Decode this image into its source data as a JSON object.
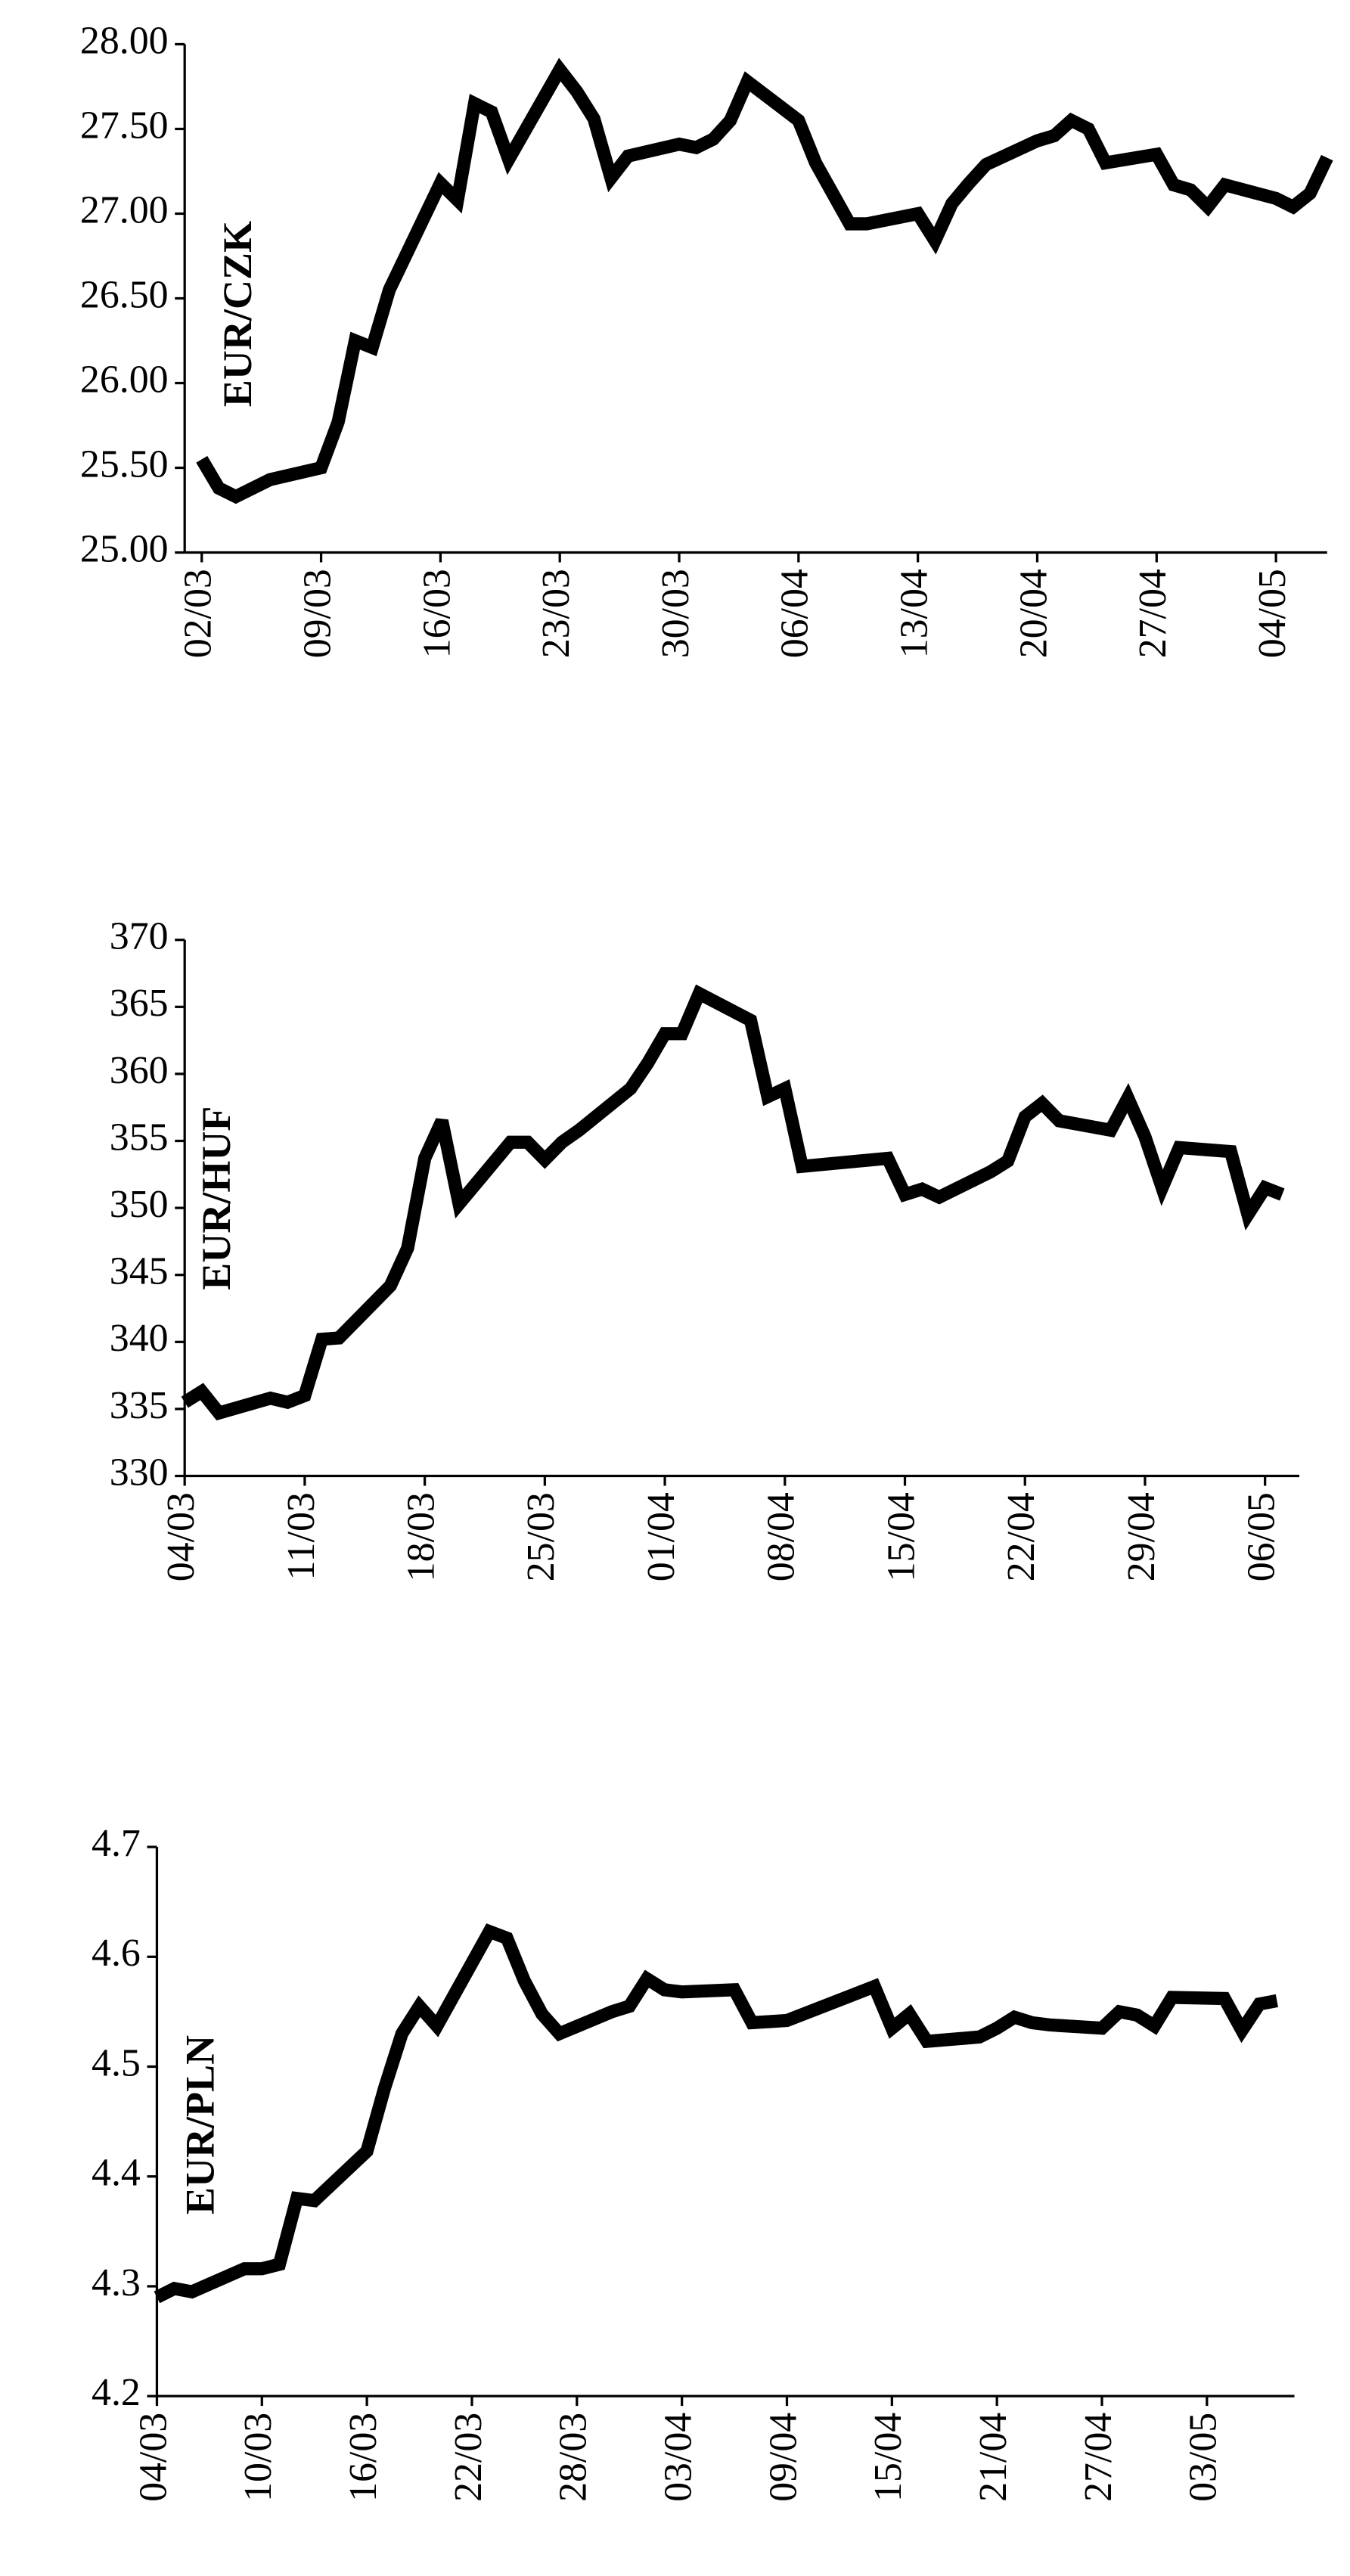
{
  "chart_data": [
    {
      "type": "line",
      "label": "EUR/CZK",
      "color": "#000000",
      "x": [
        "02/03",
        "03/03",
        "04/03",
        "05/03",
        "06/03",
        "09/03",
        "10/03",
        "11/03",
        "12/03",
        "13/03",
        "16/03",
        "17/03",
        "18/03",
        "19/03",
        "20/03",
        "23/03",
        "24/03",
        "25/03",
        "26/03",
        "27/03",
        "30/03",
        "31/03",
        "01/04",
        "02/04",
        "03/04",
        "06/04",
        "07/04",
        "08/04",
        "09/04",
        "10/04",
        "13/04",
        "14/04",
        "15/04",
        "16/04",
        "17/04",
        "20/04",
        "21/04",
        "22/04",
        "23/04",
        "24/04",
        "27/04",
        "28/04",
        "29/04",
        "30/04",
        "01/05",
        "04/05",
        "05/05",
        "06/05",
        "07/05"
      ],
      "values": [
        25.55,
        25.38,
        25.33,
        25.38,
        25.43,
        25.5,
        25.77,
        26.25,
        26.21,
        26.55,
        27.18,
        27.08,
        27.65,
        27.6,
        27.32,
        27.85,
        27.72,
        27.56,
        27.21,
        27.34,
        27.41,
        27.39,
        27.44,
        27.55,
        27.78,
        27.55,
        27.3,
        27.12,
        26.94,
        26.94,
        27.0,
        26.84,
        27.06,
        27.18,
        27.29,
        27.43,
        27.46,
        27.55,
        27.5,
        27.3,
        27.35,
        27.17,
        27.14,
        27.04,
        27.17,
        27.09,
        27.04,
        27.12,
        27.33
      ],
      "xlim": [
        "01/03",
        "07/05"
      ],
      "xticks": [
        "02/03",
        "09/03",
        "16/03",
        "23/03",
        "30/03",
        "06/04",
        "13/04",
        "20/04",
        "27/04",
        "04/05"
      ],
      "ylim": [
        25,
        28
      ],
      "yticks": [
        {
          "value": 25,
          "label": "25.00"
        },
        {
          "value": 25.5,
          "label": "25.50"
        },
        {
          "value": 26,
          "label": "26.00"
        },
        {
          "value": 26.5,
          "label": "26.50"
        },
        {
          "value": 27,
          "label": "27.00"
        },
        {
          "value": 27.5,
          "label": "27.50"
        },
        {
          "value": 28,
          "label": "28.00"
        }
      ]
    },
    {
      "type": "line",
      "label": "EUR/HUF",
      "color": "#000000",
      "x": [
        "04/03",
        "05/03",
        "06/03",
        "09/03",
        "10/03",
        "11/03",
        "12/03",
        "13/03",
        "16/03",
        "17/03",
        "18/03",
        "19/03",
        "20/03",
        "23/03",
        "24/03",
        "25/03",
        "26/03",
        "27/03",
        "30/03",
        "31/03",
        "01/04",
        "02/04",
        "03/04",
        "06/04",
        "07/04",
        "08/04",
        "09/04",
        "14/04",
        "15/04",
        "16/04",
        "17/04",
        "20/04",
        "21/04",
        "22/04",
        "23/04",
        "24/04",
        "27/04",
        "28/04",
        "29/04",
        "30/04",
        "01/05",
        "04/05",
        "05/05",
        "06/05",
        "07/05"
      ],
      "values": [
        335.5,
        336.3,
        334.7,
        335.8,
        335.5,
        336.0,
        340.2,
        340.3,
        344.2,
        347.0,
        353.7,
        356.5,
        350.3,
        354.9,
        354.9,
        353.6,
        354.9,
        355.8,
        358.9,
        360.8,
        363.0,
        363.0,
        366.0,
        364.0,
        358.3,
        358.9,
        353.1,
        353.7,
        351.0,
        351.4,
        350.8,
        352.7,
        353.5,
        356.8,
        357.8,
        356.5,
        355.8,
        358.2,
        355.3,
        351.5,
        354.5,
        354.2,
        349.5,
        351.5,
        351.0
      ],
      "xlim": [
        "04/03",
        "08/05"
      ],
      "xticks": [
        "04/03",
        "11/03",
        "18/03",
        "25/03",
        "01/04",
        "08/04",
        "15/04",
        "22/04",
        "29/04",
        "06/05"
      ],
      "ylim": [
        330,
        370
      ],
      "yticks": [
        330,
        335,
        340,
        345,
        350,
        355,
        360,
        365,
        370
      ]
    },
    {
      "type": "line",
      "label": "EUR/PLN",
      "color": "#000000",
      "x": [
        "04/03",
        "05/03",
        "06/03",
        "09/03",
        "10/03",
        "11/03",
        "12/03",
        "13/03",
        "16/03",
        "17/03",
        "18/03",
        "19/03",
        "20/03",
        "23/03",
        "24/03",
        "25/03",
        "26/03",
        "27/03",
        "30/03",
        "31/03",
        "01/04",
        "02/04",
        "03/04",
        "06/04",
        "07/04",
        "08/04",
        "09/04",
        "14/04",
        "15/04",
        "16/04",
        "17/04",
        "20/04",
        "21/04",
        "22/04",
        "23/04",
        "24/04",
        "27/04",
        "28/04",
        "29/04",
        "30/04",
        "01/05",
        "04/05",
        "05/05",
        "06/05",
        "07/05"
      ],
      "values": [
        4.29,
        4.298,
        4.295,
        4.316,
        4.316,
        4.32,
        4.38,
        4.378,
        4.423,
        4.48,
        4.53,
        4.555,
        4.537,
        4.623,
        4.617,
        4.578,
        4.548,
        4.53,
        4.55,
        4.555,
        4.58,
        4.57,
        4.568,
        4.57,
        4.54,
        4.541,
        4.542,
        4.573,
        4.535,
        4.548,
        4.523,
        4.527,
        4.535,
        4.545,
        4.54,
        4.538,
        4.535,
        4.55,
        4.547,
        4.537,
        4.563,
        4.562,
        4.533,
        4.557,
        4.56
      ],
      "xlim": [
        "04/03",
        "08/05"
      ],
      "xticks": [
        "04/03",
        "10/03",
        "16/03",
        "22/03",
        "28/03",
        "03/04",
        "09/04",
        "15/04",
        "21/04",
        "27/04",
        "03/05"
      ],
      "ylim": [
        4.2,
        4.7
      ],
      "yticks": [
        4.2,
        4.3,
        4.4,
        4.5,
        4.6,
        4.7
      ]
    }
  ]
}
